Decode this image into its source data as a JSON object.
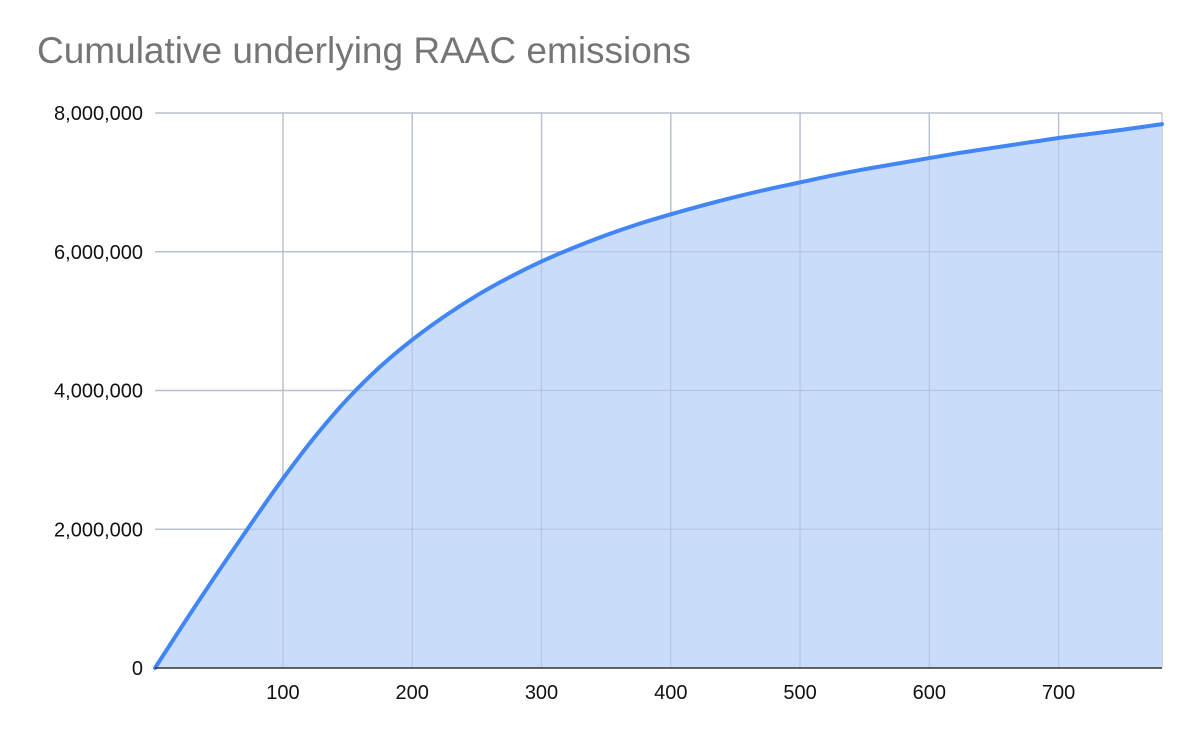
{
  "chart_data": {
    "type": "area",
    "title": "Cumulative underlying RAAC emissions",
    "xlabel": "",
    "ylabel": "",
    "xlim": [
      1,
      780
    ],
    "ylim": [
      0,
      8000000
    ],
    "x_ticks": [
      100,
      200,
      300,
      400,
      500,
      600,
      700
    ],
    "x_tick_labels": [
      "100",
      "200",
      "300",
      "400",
      "500",
      "600",
      "700"
    ],
    "y_ticks": [
      0,
      2000000,
      4000000,
      6000000,
      8000000
    ],
    "y_tick_labels": [
      "0",
      "2,000,000",
      "4,000,000",
      "6,000,000",
      "8,000,000"
    ],
    "grid": true,
    "legend": "none",
    "colors": {
      "line": "#4285f4",
      "fill": "#c6dafa",
      "grid": "#cccccc",
      "title": "#757575"
    },
    "series": [
      {
        "x": [
          1,
          25,
          50,
          75,
          100,
          125,
          150,
          175,
          200,
          225,
          250,
          275,
          300,
          325,
          350,
          375,
          400,
          425,
          450,
          475,
          500,
          525,
          550,
          575,
          600,
          625,
          650,
          675,
          700,
          725,
          750,
          780
        ],
        "values": [
          0,
          690000,
          1390000,
          2070000,
          2730000,
          3340000,
          3880000,
          4340000,
          4730000,
          5070000,
          5370000,
          5630000,
          5860000,
          6060000,
          6240000,
          6400000,
          6540000,
          6670000,
          6790000,
          6900000,
          7000000,
          7100000,
          7190000,
          7270000,
          7350000,
          7430000,
          7500000,
          7570000,
          7640000,
          7700000,
          7760000,
          7840000
        ]
      }
    ]
  }
}
